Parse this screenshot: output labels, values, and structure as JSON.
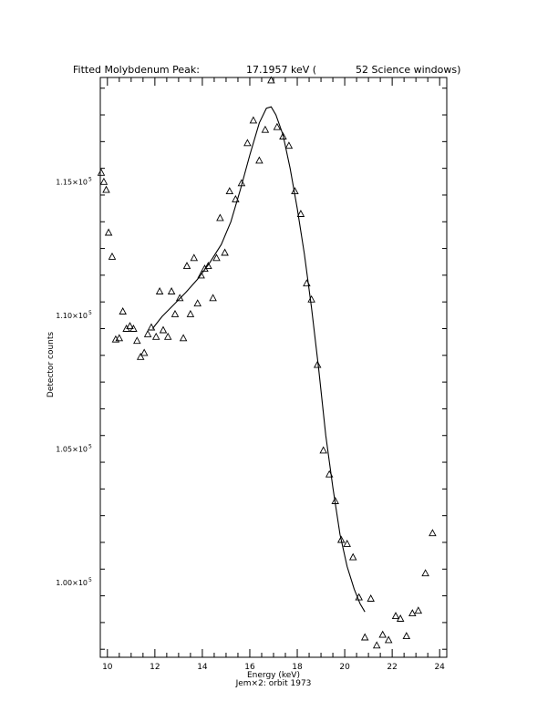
{
  "chart_data": {
    "type": "scatter",
    "title_parts": {
      "label": "Fitted Molybdenum Peak:",
      "energy": "17.1957 keV (",
      "windows": "52 Science windows)"
    },
    "xlabel": "Energy (keV)",
    "ylabel": "Detector counts",
    "footer": "Jem×2: orbit 1973",
    "xlim": [
      9.7,
      24.3
    ],
    "ylim": [
      97200,
      118900
    ],
    "x_ticks": [
      {
        "value": 10,
        "label": "10"
      },
      {
        "value": 12,
        "label": "12"
      },
      {
        "value": 14,
        "label": "14"
      },
      {
        "value": 16,
        "label": "16"
      },
      {
        "value": 18,
        "label": "18"
      },
      {
        "value": 20,
        "label": "20"
      },
      {
        "value": 22,
        "label": "22"
      },
      {
        "value": 24,
        "label": "24"
      }
    ],
    "y_ticks": [
      {
        "value": 100000,
        "mantissa": "1.00×10",
        "exp": "5"
      },
      {
        "value": 105000,
        "mantissa": "1.05×10",
        "exp": "5"
      },
      {
        "value": 110000,
        "mantissa": "1.10×10",
        "exp": "5"
      },
      {
        "value": 115000,
        "mantissa": "1.15×10",
        "exp": "5"
      }
    ],
    "series": [
      {
        "marker": "triangle",
        "points": [
          [
            9.74,
            115340
          ],
          [
            9.85,
            115000
          ],
          [
            9.95,
            114700
          ],
          [
            10.05,
            113100
          ],
          [
            10.2,
            112200
          ],
          [
            10.35,
            109100
          ],
          [
            10.5,
            109150
          ],
          [
            10.65,
            110150
          ],
          [
            10.8,
            109500
          ],
          [
            10.95,
            109600
          ],
          [
            11.1,
            109500
          ],
          [
            11.25,
            109050
          ],
          [
            11.4,
            108450
          ],
          [
            11.55,
            108600
          ],
          [
            11.7,
            109300
          ],
          [
            11.85,
            109550
          ],
          [
            12.05,
            109200
          ],
          [
            12.2,
            110900
          ],
          [
            12.35,
            109450
          ],
          [
            12.55,
            109200
          ],
          [
            12.7,
            110900
          ],
          [
            12.85,
            110050
          ],
          [
            13.05,
            110650
          ],
          [
            13.2,
            109150
          ],
          [
            13.35,
            111850
          ],
          [
            13.5,
            110050
          ],
          [
            13.65,
            112150
          ],
          [
            13.8,
            110450
          ],
          [
            13.95,
            111500
          ],
          [
            14.1,
            111750
          ],
          [
            14.25,
            111850
          ],
          [
            14.45,
            110650
          ],
          [
            14.6,
            112150
          ],
          [
            14.75,
            113650
          ],
          [
            14.95,
            112350
          ],
          [
            15.15,
            114650
          ],
          [
            15.4,
            114350
          ],
          [
            15.65,
            114950
          ],
          [
            15.9,
            116450
          ],
          [
            16.15,
            117300
          ],
          [
            16.4,
            115800
          ],
          [
            16.65,
            116950
          ],
          [
            16.9,
            118800
          ],
          [
            17.15,
            117050
          ],
          [
            17.4,
            116700
          ],
          [
            17.65,
            116350
          ],
          [
            17.9,
            114650
          ],
          [
            18.15,
            113800
          ],
          [
            18.4,
            111200
          ],
          [
            18.6,
            110600
          ],
          [
            18.85,
            108150
          ],
          [
            19.1,
            104950
          ],
          [
            19.35,
            104050
          ],
          [
            19.6,
            103050
          ],
          [
            19.85,
            101600
          ],
          [
            20.1,
            101450
          ],
          [
            20.35,
            100950
          ],
          [
            20.6,
            99450
          ],
          [
            20.85,
            97950
          ],
          [
            21.1,
            99400
          ],
          [
            21.35,
            97650
          ],
          [
            21.6,
            98050
          ],
          [
            21.85,
            97850
          ],
          [
            22.15,
            98750
          ],
          [
            22.35,
            98650
          ],
          [
            22.6,
            98000
          ],
          [
            22.85,
            98850
          ],
          [
            23.1,
            98950
          ],
          [
            23.4,
            100350
          ],
          [
            23.7,
            101850
          ]
        ]
      },
      {
        "type": "line",
        "points": [
          [
            11.9,
            109500
          ],
          [
            12.3,
            109950
          ],
          [
            12.8,
            110400
          ],
          [
            13.3,
            110850
          ],
          [
            13.8,
            111350
          ],
          [
            14.3,
            111950
          ],
          [
            14.8,
            112650
          ],
          [
            15.2,
            113500
          ],
          [
            15.6,
            114700
          ],
          [
            16.0,
            116000
          ],
          [
            16.4,
            117200
          ],
          [
            16.7,
            117750
          ],
          [
            16.9,
            117800
          ],
          [
            17.1,
            117500
          ],
          [
            17.4,
            116750
          ],
          [
            17.7,
            115500
          ],
          [
            18.0,
            114000
          ],
          [
            18.3,
            112300
          ],
          [
            18.6,
            110300
          ],
          [
            18.9,
            108000
          ],
          [
            19.2,
            105500
          ],
          [
            19.5,
            103550
          ],
          [
            19.8,
            101800
          ],
          [
            20.1,
            100600
          ],
          [
            20.4,
            99750
          ],
          [
            20.65,
            99200
          ],
          [
            20.85,
            98900
          ]
        ]
      }
    ]
  }
}
